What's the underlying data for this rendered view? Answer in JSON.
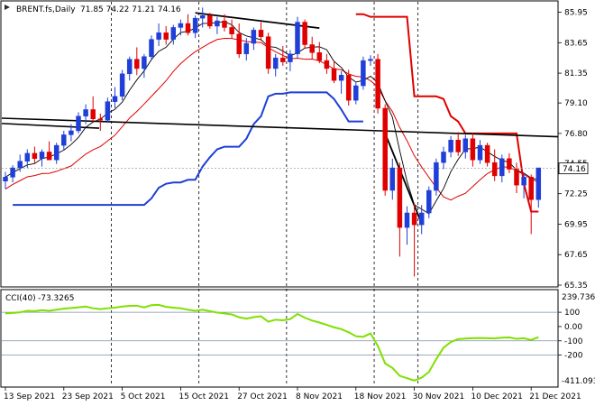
{
  "header": {
    "symbol_label": "BRENT.fs,Daily",
    "ohlc_label": "71.85 74.22 71.21 74.16"
  },
  "cci_header": {
    "label": "CCI(40)",
    "value": "-73.3265"
  },
  "chart_data": [
    {
      "type": "candlestick",
      "panel": "price",
      "symbol": "BRENT.fs",
      "timeframe": "Daily",
      "ylim": [
        65.35,
        86.6
      ],
      "yticks": [
        65.35,
        67.65,
        69.95,
        72.25,
        74.55,
        76.8,
        79.1,
        81.35,
        83.65,
        85.95
      ],
      "ytick_labels": [
        "65.35",
        "67.65",
        "69.95",
        "72.25",
        "74.55",
        "76.80",
        "79.10",
        "81.35",
        "83.65",
        "85.95"
      ],
      "current_price": 74.16,
      "current_price_label": "74.16",
      "xtick_labels": [
        "13 Sep 2021",
        "23 Sep 2021",
        "5 Oct 2021",
        "15 Oct 2021",
        "27 Oct 2021",
        "8 Nov 2021",
        "18 Nov 2021",
        "30 Nov 2021",
        "10 Dec 2021",
        "21 Dec 2021"
      ],
      "xtick_index": [
        0,
        8,
        16,
        24,
        32,
        40,
        48,
        56,
        64,
        72
      ],
      "candles": [
        [
          73.2,
          73.9,
          72.6,
          73.5
        ],
        [
          73.5,
          74.4,
          73.1,
          74.2
        ],
        [
          74.2,
          75.2,
          73.9,
          74.7
        ],
        [
          74.7,
          75.6,
          74.2,
          75.3
        ],
        [
          75.3,
          75.8,
          74.5,
          74.9
        ],
        [
          74.9,
          75.6,
          74.3,
          75.4
        ],
        [
          75.4,
          76.2,
          74.8,
          74.8
        ],
        [
          74.8,
          76.1,
          74.5,
          75.9
        ],
        [
          75.9,
          77.0,
          75.5,
          76.7
        ],
        [
          76.7,
          77.5,
          76.2,
          77.0
        ],
        [
          77.0,
          78.4,
          76.8,
          78.1
        ],
        [
          78.1,
          79.0,
          77.5,
          78.6
        ],
        [
          78.6,
          79.6,
          77.6,
          77.9
        ],
        [
          77.9,
          78.3,
          77.0,
          77.8
        ],
        [
          77.8,
          79.5,
          77.6,
          79.2
        ],
        [
          79.2,
          80.3,
          78.7,
          79.6
        ],
        [
          79.6,
          81.6,
          79.3,
          81.3
        ],
        [
          81.3,
          82.6,
          80.8,
          82.4
        ],
        [
          82.4,
          83.3,
          81.2,
          81.7
        ],
        [
          81.7,
          82.8,
          81.0,
          82.6
        ],
        [
          82.6,
          84.2,
          82.3,
          83.9
        ],
        [
          83.9,
          85.1,
          83.4,
          84.4
        ],
        [
          84.4,
          84.9,
          83.5,
          83.9
        ],
        [
          83.9,
          85.0,
          83.5,
          84.8
        ],
        [
          84.8,
          85.4,
          84.2,
          85.1
        ],
        [
          85.1,
          85.8,
          84.2,
          84.4
        ],
        [
          84.4,
          85.7,
          84.0,
          85.5
        ],
        [
          85.5,
          86.3,
          84.8,
          85.7
        ],
        [
          85.7,
          85.9,
          84.7,
          84.9
        ],
        [
          84.9,
          85.6,
          84.3,
          85.3
        ],
        [
          85.3,
          85.8,
          84.5,
          84.8
        ],
        [
          84.8,
          85.4,
          84.0,
          84.3
        ],
        [
          84.3,
          85.1,
          82.5,
          82.8
        ],
        [
          82.8,
          84.0,
          82.3,
          83.6
        ],
        [
          83.6,
          84.8,
          83.1,
          84.6
        ],
        [
          84.6,
          85.2,
          83.8,
          84.1
        ],
        [
          84.1,
          84.4,
          81.3,
          81.7
        ],
        [
          81.7,
          82.8,
          81.1,
          82.5
        ],
        [
          82.5,
          83.4,
          81.9,
          82.2
        ],
        [
          82.2,
          83.1,
          81.5,
          82.8
        ],
        [
          82.8,
          85.6,
          82.5,
          85.2
        ],
        [
          85.2,
          85.4,
          83.2,
          83.5
        ],
        [
          83.5,
          84.1,
          82.4,
          82.9
        ],
        [
          82.9,
          83.7,
          82.1,
          82.3
        ],
        [
          82.3,
          82.8,
          81.3,
          81.7
        ],
        [
          81.7,
          82.3,
          80.6,
          80.8
        ],
        [
          80.8,
          81.5,
          79.8,
          81.2
        ],
        [
          81.2,
          81.6,
          78.9,
          79.3
        ],
        [
          79.3,
          80.7,
          79.0,
          80.4
        ],
        [
          80.4,
          82.6,
          80.1,
          82.3
        ],
        [
          82.3,
          82.7,
          81.9,
          82.4
        ],
        [
          82.4,
          82.8,
          78.3,
          78.7
        ],
        [
          78.7,
          79.0,
          72.1,
          72.5
        ],
        [
          72.5,
          74.9,
          71.8,
          74.2
        ],
        [
          74.2,
          74.6,
          67.5,
          69.7
        ],
        [
          69.7,
          71.3,
          68.4,
          70.8
        ],
        [
          70.8,
          71.5,
          66.0,
          69.9
        ],
        [
          69.9,
          71.4,
          69.2,
          70.8
        ],
        [
          70.8,
          72.8,
          70.4,
          72.5
        ],
        [
          72.5,
          74.9,
          72.1,
          74.6
        ],
        [
          74.6,
          75.8,
          74.1,
          75.4
        ],
        [
          75.4,
          76.6,
          75.0,
          76.3
        ],
        [
          76.3,
          76.9,
          75.1,
          75.4
        ],
        [
          75.4,
          76.7,
          74.9,
          76.4
        ],
        [
          76.4,
          76.8,
          74.3,
          74.8
        ],
        [
          74.8,
          76.3,
          74.5,
          75.9
        ],
        [
          75.9,
          76.1,
          74.3,
          74.6
        ],
        [
          74.6,
          75.6,
          73.2,
          73.6
        ],
        [
          73.6,
          75.2,
          73.1,
          74.9
        ],
        [
          74.9,
          75.3,
          73.8,
          74.1
        ],
        [
          74.1,
          74.6,
          72.3,
          72.9
        ],
        [
          72.9,
          73.8,
          71.9,
          73.5
        ],
        [
          73.5,
          73.7,
          69.2,
          71.8
        ],
        [
          71.8,
          74.2,
          71.2,
          74.2
        ]
      ],
      "legend": "none",
      "grid": false
    },
    {
      "type": "line",
      "panel": "oscillator",
      "indicator": "CCI(40)",
      "current_value": -73.3265,
      "ylim": [
        -411.093,
        239.7369
      ],
      "yticks": [
        100,
        0,
        -100,
        -200
      ],
      "ytick_labels": [
        "100",
        "0.00",
        "-100",
        "-200"
      ],
      "top_label": "239.7369",
      "bottom_label": "-411.093",
      "levels": [
        100,
        -100,
        -200
      ],
      "values": [
        92,
        95,
        100,
        110,
        108,
        115,
        110,
        118,
        125,
        130,
        135,
        140,
        128,
        122,
        128,
        132,
        140,
        145,
        146,
        134,
        150,
        152,
        138,
        132,
        128,
        118,
        110,
        118,
        108,
        98,
        92,
        85,
        65,
        55,
        66,
        72,
        34,
        48,
        44,
        52,
        88,
        62,
        42,
        28,
        12,
        -5,
        -18,
        -40,
        -68,
        -72,
        -48,
        -135,
        -258,
        -290,
        -345,
        -362,
        -378,
        -358,
        -318,
        -228,
        -148,
        -108,
        -88,
        -84,
        -82,
        -80,
        -82,
        -83,
        -78,
        -76,
        -86,
        -82,
        -94,
        -74
      ]
    }
  ]
}
